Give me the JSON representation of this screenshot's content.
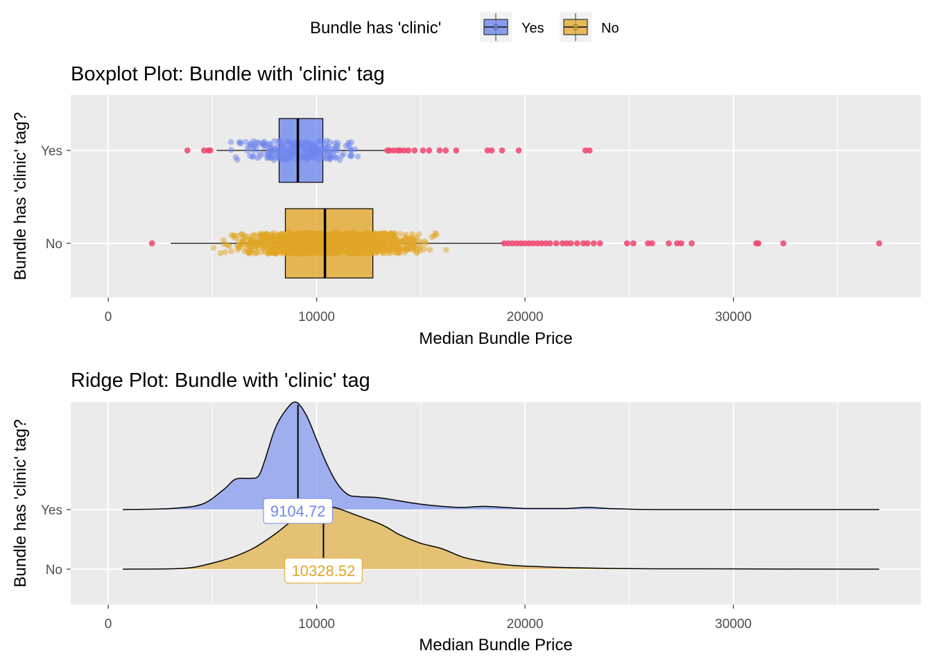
{
  "legend": {
    "title": "Bundle has 'clinic'",
    "items": [
      {
        "label": "Yes",
        "color": "#6D86EE"
      },
      {
        "label": "No",
        "color": "#E1A526"
      }
    ],
    "placement": "top"
  },
  "colors": {
    "panel_bg": "#EBEBEB",
    "grid": "#FFFFFF",
    "outlier": "#F0446E",
    "text": "#000000",
    "tick_text": "#4D4D4D"
  },
  "chart_data": [
    {
      "type": "boxplot",
      "title": "Boxplot Plot: Bundle with 'clinic' tag",
      "xlabel": "Median Bundle Price",
      "ylabel": "Bundle has 'clinic' tag?",
      "xlim": [
        -1800,
        39000
      ],
      "xticks": [
        0,
        10000,
        20000,
        30000
      ],
      "grid": true,
      "categories": [
        "Yes",
        "No"
      ],
      "series": [
        {
          "name": "Yes",
          "color": "#6D86EE",
          "q1": 8200,
          "median": 9100,
          "q3": 10300,
          "whisker_low": 5200,
          "whisker_high": 13300,
          "jitter_range": [
            5700,
            12200
          ],
          "outliers": [
            3800,
            4600,
            4800,
            4900,
            13400,
            13500,
            13700,
            13900,
            14000,
            14200,
            14400,
            14700,
            15100,
            15400,
            15900,
            16200,
            16700,
            18200,
            18400,
            18900,
            19700,
            22900,
            23100
          ]
        },
        {
          "name": "No",
          "color": "#E1A526",
          "q1": 8500,
          "median": 10400,
          "q3": 12700,
          "whisker_low": 3000,
          "whisker_high": 19000,
          "jitter_range": [
            4400,
            16700
          ],
          "outliers": [
            2100,
            19000,
            19200,
            19400,
            19600,
            19800,
            20000,
            20200,
            20400,
            20600,
            20800,
            21000,
            21200,
            21500,
            21800,
            22000,
            22200,
            22500,
            22800,
            23000,
            23300,
            23600,
            24900,
            25200,
            25900,
            26100,
            26900,
            27300,
            27500,
            28000,
            31100,
            31200,
            32400,
            37000
          ]
        }
      ]
    },
    {
      "type": "ridge",
      "title": "Ridge Plot: Bundle with 'clinic' tag",
      "xlabel": "Median Bundle Price",
      "ylabel": "Bundle has 'clinic' tag?",
      "xlim": [
        -1800,
        39000
      ],
      "xticks": [
        0,
        10000,
        20000,
        30000
      ],
      "grid": true,
      "categories": [
        "Yes",
        "No"
      ],
      "series": [
        {
          "name": "Yes",
          "color": "#6D86EE",
          "median": 9104.72,
          "median_label": "9104.72",
          "x": [
            700,
            3000,
            4500,
            5500,
            6000,
            6300,
            6800,
            7200,
            7500,
            8000,
            8500,
            9000,
            9500,
            10000,
            10500,
            11000,
            11500,
            12000,
            13000,
            14000,
            15000,
            16000,
            17000,
            18000,
            19000,
            20000,
            21000,
            22000,
            23000,
            24000,
            26000,
            30000,
            37000
          ],
          "density": [
            0.0,
            0.01,
            0.05,
            0.18,
            0.27,
            0.29,
            0.29,
            0.31,
            0.45,
            0.75,
            0.92,
            1.0,
            0.88,
            0.65,
            0.42,
            0.24,
            0.14,
            0.12,
            0.11,
            0.08,
            0.05,
            0.03,
            0.02,
            0.03,
            0.02,
            0.01,
            0.01,
            0.01,
            0.02,
            0.01,
            0.0,
            0.0,
            0.0
          ]
        },
        {
          "name": "No",
          "color": "#E1A526",
          "median": 10328.52,
          "median_label": "10328.52",
          "x": [
            700,
            3000,
            4000,
            5000,
            6000,
            7000,
            8000,
            9000,
            10000,
            10500,
            11000,
            12000,
            13000,
            13500,
            14000,
            15000,
            16000,
            17000,
            18000,
            19000,
            20000,
            22000,
            24000,
            26000,
            28000,
            30000,
            37000
          ],
          "density": [
            0.0,
            0.005,
            0.02,
            0.08,
            0.16,
            0.28,
            0.46,
            0.67,
            0.8,
            0.82,
            0.8,
            0.7,
            0.6,
            0.53,
            0.45,
            0.34,
            0.27,
            0.16,
            0.1,
            0.06,
            0.04,
            0.02,
            0.01,
            0.005,
            0.005,
            0.003,
            0.0
          ]
        }
      ]
    }
  ]
}
